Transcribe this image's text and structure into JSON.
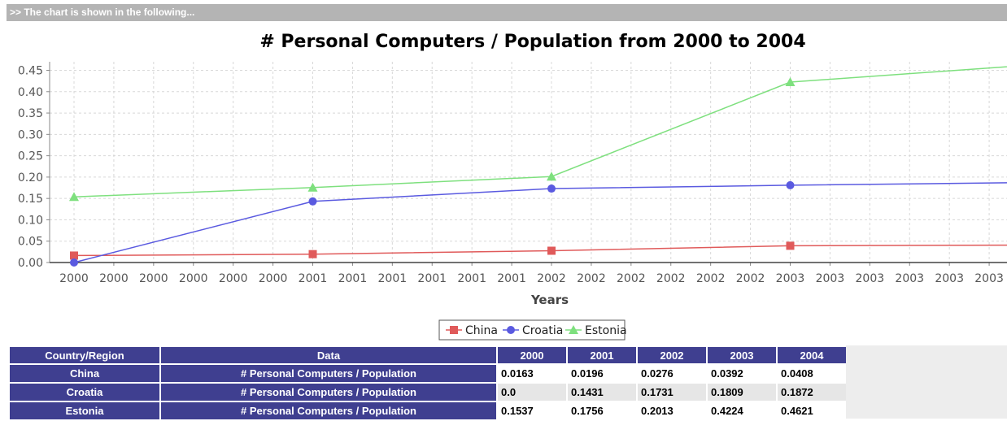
{
  "banner": ">> The chart is shown in the following...",
  "chart_data": {
    "type": "line",
    "title": "# Personal Computers / Population from 2000 to 2004",
    "xlabel": "Years",
    "ylabel": "",
    "ylim": [
      0,
      0.47
    ],
    "y_ticks": [
      "0.00",
      "0.05",
      "0.10",
      "0.15",
      "0.20",
      "0.25",
      "0.30",
      "0.35",
      "0.40",
      "0.45"
    ],
    "x_ticks": [
      "2000",
      "2000",
      "2000",
      "2000",
      "2000",
      "2000",
      "2001",
      "2001",
      "2001",
      "2001",
      "2001",
      "2001",
      "2002",
      "2002",
      "2002",
      "2002",
      "2002",
      "2002",
      "2003",
      "2003",
      "2003",
      "2003",
      "2003",
      "2003"
    ],
    "x": [
      2000,
      2001,
      2002,
      2003,
      2004
    ],
    "grid": true,
    "legend_position": "bottom",
    "series": [
      {
        "name": "China",
        "values": [
          0.0163,
          0.0196,
          0.0276,
          0.0392,
          0.0408
        ],
        "color": "#e05a5a",
        "marker": "square"
      },
      {
        "name": "Croatia",
        "values": [
          0.0,
          0.1431,
          0.1731,
          0.1809,
          0.1872
        ],
        "color": "#5a5ae0",
        "marker": "circle"
      },
      {
        "name": "Estonia",
        "values": [
          0.1537,
          0.1756,
          0.2013,
          0.4224,
          0.4621
        ],
        "color": "#7ee07e",
        "marker": "triangle"
      }
    ]
  },
  "table": {
    "headers": [
      "Country/Region",
      "Data",
      "2000",
      "2001",
      "2002",
      "2003",
      "2004"
    ],
    "rows": [
      {
        "country": "China",
        "data": "# Personal Computers / Population",
        "values": [
          "0.0163",
          "0.0196",
          "0.0276",
          "0.0392",
          "0.0408"
        ]
      },
      {
        "country": "Croatia",
        "data": "# Personal Computers / Population",
        "values": [
          "0.0",
          "0.1431",
          "0.1731",
          "0.1809",
          "0.1872"
        ]
      },
      {
        "country": "Estonia",
        "data": "# Personal Computers / Population",
        "values": [
          "0.1537",
          "0.1756",
          "0.2013",
          "0.4224",
          "0.4621"
        ]
      }
    ]
  }
}
